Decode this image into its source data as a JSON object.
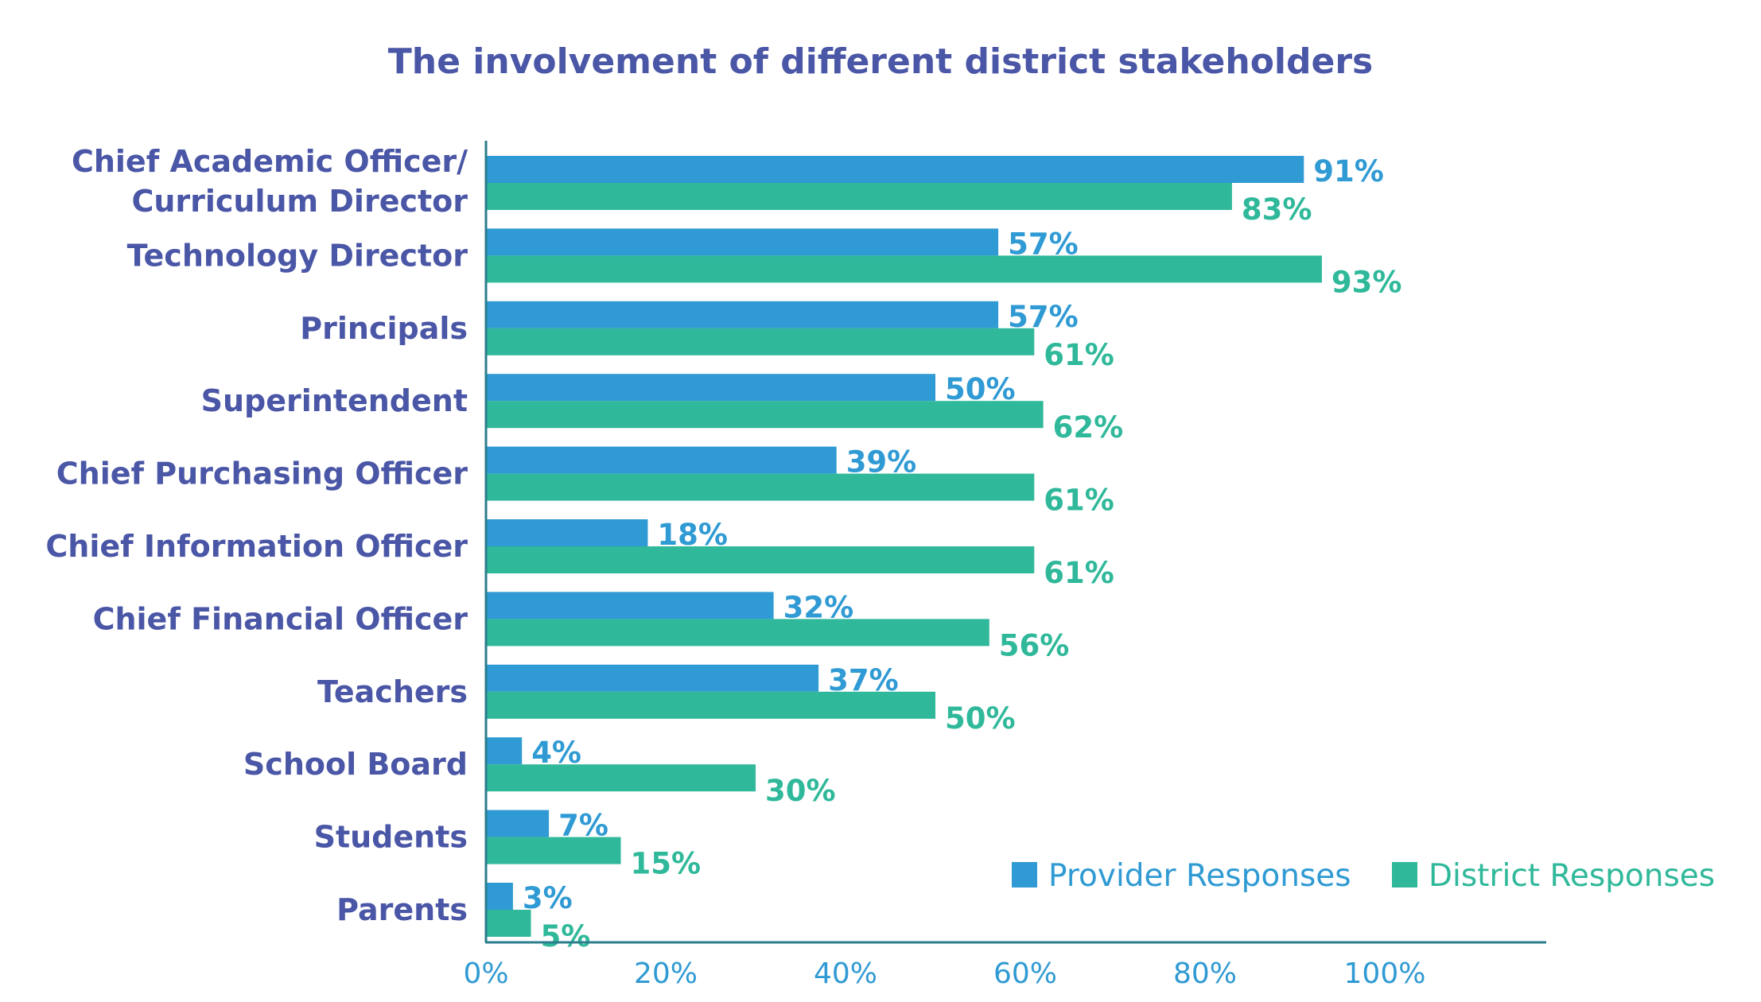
{
  "chart_data": {
    "type": "bar",
    "orientation": "horizontal",
    "title": "The involvement of different district stakeholders",
    "categories": [
      [
        "Chief Academic Officer/",
        "Curriculum Director"
      ],
      [
        "Technology Director"
      ],
      [
        "Principals"
      ],
      [
        "Superintendent"
      ],
      [
        "Chief Purchasing Officer"
      ],
      [
        "Chief Information Officer"
      ],
      [
        "Chief Financial Officer"
      ],
      [
        "Teachers"
      ],
      [
        "School Board"
      ],
      [
        "Students"
      ],
      [
        "Parents"
      ]
    ],
    "series": [
      {
        "name": "Provider Responses",
        "color": "#2f9ad3",
        "values": [
          91,
          57,
          57,
          50,
          39,
          18,
          32,
          37,
          4,
          7,
          3
        ],
        "labels": [
          "91%",
          "57%",
          "57%",
          "50%",
          "39%",
          "18%",
          "32%",
          "37%",
          "4%",
          "7%",
          "3%"
        ]
      },
      {
        "name": "District Responses",
        "color": "#2fb89a",
        "values": [
          83,
          93,
          61,
          62,
          61,
          61,
          56,
          50,
          30,
          15,
          5
        ],
        "labels": [
          "83%",
          "93%",
          "61%",
          "62%",
          "61%",
          "61%",
          "56%",
          "50%",
          "30%",
          "15%",
          "5%"
        ]
      }
    ],
    "x_ticks": [
      "0%",
      "20%",
      "40%",
      "60%",
      "80%",
      "100%"
    ],
    "x_tick_values": [
      0,
      20,
      40,
      60,
      80,
      100
    ],
    "xlim": [
      0,
      118
    ],
    "grid": false,
    "legend_position": "bottom-right",
    "colors": {
      "title": "#4a56a6",
      "category_labels": "#4a56a6",
      "axis": "#2b7d8c",
      "tick_labels": "#2f9ad3"
    }
  }
}
